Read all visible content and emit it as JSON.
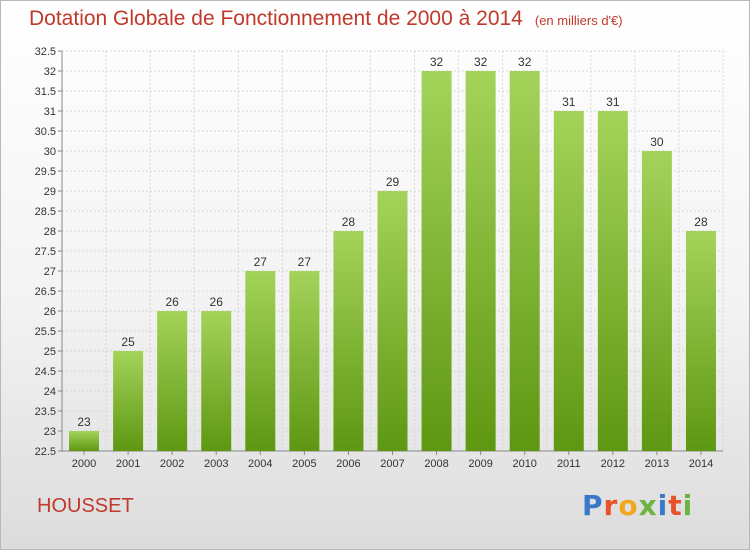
{
  "header": {
    "title": "Dotation Globale de Fonctionnement de 2000 à 2014",
    "unit": "(en milliers d'€)"
  },
  "footer": {
    "commune": "HOUSSET",
    "logo_text": "Proxiti"
  },
  "colors": {
    "title": "#c0392b",
    "bar_top": "#a4d35a",
    "bar_bottom": "#5e9712",
    "logo_letters": [
      "#3a78c9",
      "#e8522a",
      "#f0a81c",
      "#6cb33f",
      "#3a78c9",
      "#e8522a",
      "#6cb33f"
    ]
  },
  "chart_data": {
    "type": "bar",
    "title": "Dotation Globale de Fonctionnement de 2000 à 2014",
    "subtitle": "(en milliers d'€)",
    "categories": [
      "2000",
      "2001",
      "2002",
      "2003",
      "2004",
      "2005",
      "2006",
      "2007",
      "2008",
      "2009",
      "2010",
      "2011",
      "2012",
      "2013",
      "2014"
    ],
    "values": [
      23,
      25,
      26,
      26,
      27,
      27,
      28,
      29,
      32,
      32,
      32,
      31,
      31,
      30,
      28
    ],
    "ylim": [
      22.5,
      32.5
    ],
    "yticks": [
      "22.5",
      "23",
      "23.5",
      "24",
      "24.5",
      "25",
      "25.5",
      "26",
      "26.5",
      "27",
      "27.5",
      "28",
      "28.5",
      "29",
      "29.5",
      "30",
      "30.5",
      "31",
      "31.5",
      "32",
      "32.5"
    ],
    "grid": true,
    "xlabel": "",
    "ylabel": ""
  }
}
